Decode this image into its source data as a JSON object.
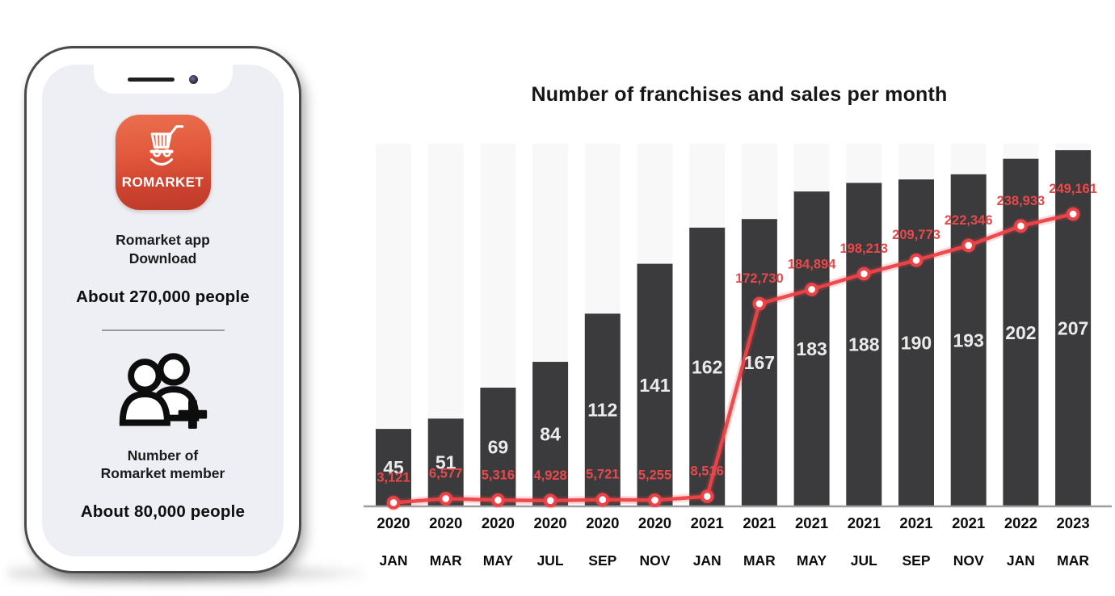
{
  "phone": {
    "app_icon_label": "ROMARKET",
    "download_title_line1": "Romarket app",
    "download_title_line2": "Download",
    "download_count": "About 270,000 people",
    "member_title_line1": "Number of",
    "member_title_line2": "Romarket member",
    "member_count": "About 80,000 people"
  },
  "colors": {
    "bar": "#3b3a3c",
    "bar_label": "#ebebeb",
    "line": "#ee4247",
    "line_glow": "rgba(238,66,71,0.20)",
    "line_label": "#e8494b",
    "axis": "#9e9e9e",
    "column_band": "#f8f8f9",
    "axis_text": "#0c0c0c"
  },
  "chart_data": {
    "type": "bar+line",
    "title": "Number of franchises and sales per month",
    "x_years": [
      "2020",
      "2020",
      "2020",
      "2020",
      "2020",
      "2020",
      "2021",
      "2021",
      "2021",
      "2021",
      "2021",
      "2021",
      "2022",
      "2023"
    ],
    "x_months": [
      "JAN",
      "MAR",
      "MAY",
      "JUL",
      "SEP",
      "NOV",
      "JAN",
      "MAR",
      "MAY",
      "JUL",
      "SEP",
      "NOV",
      "JAN",
      "MAR"
    ],
    "series": [
      {
        "name": "Number of franchises",
        "type": "bar",
        "values": [
          45,
          51,
          69,
          84,
          112,
          141,
          162,
          167,
          183,
          188,
          190,
          193,
          202,
          207
        ]
      },
      {
        "name": "Sales per month",
        "type": "line",
        "values": [
          3121,
          6577,
          5316,
          4928,
          5721,
          5255,
          8516,
          172730,
          184894,
          198213,
          209773,
          222346,
          238933,
          249161
        ]
      }
    ],
    "legend": "none",
    "grid": false
  }
}
